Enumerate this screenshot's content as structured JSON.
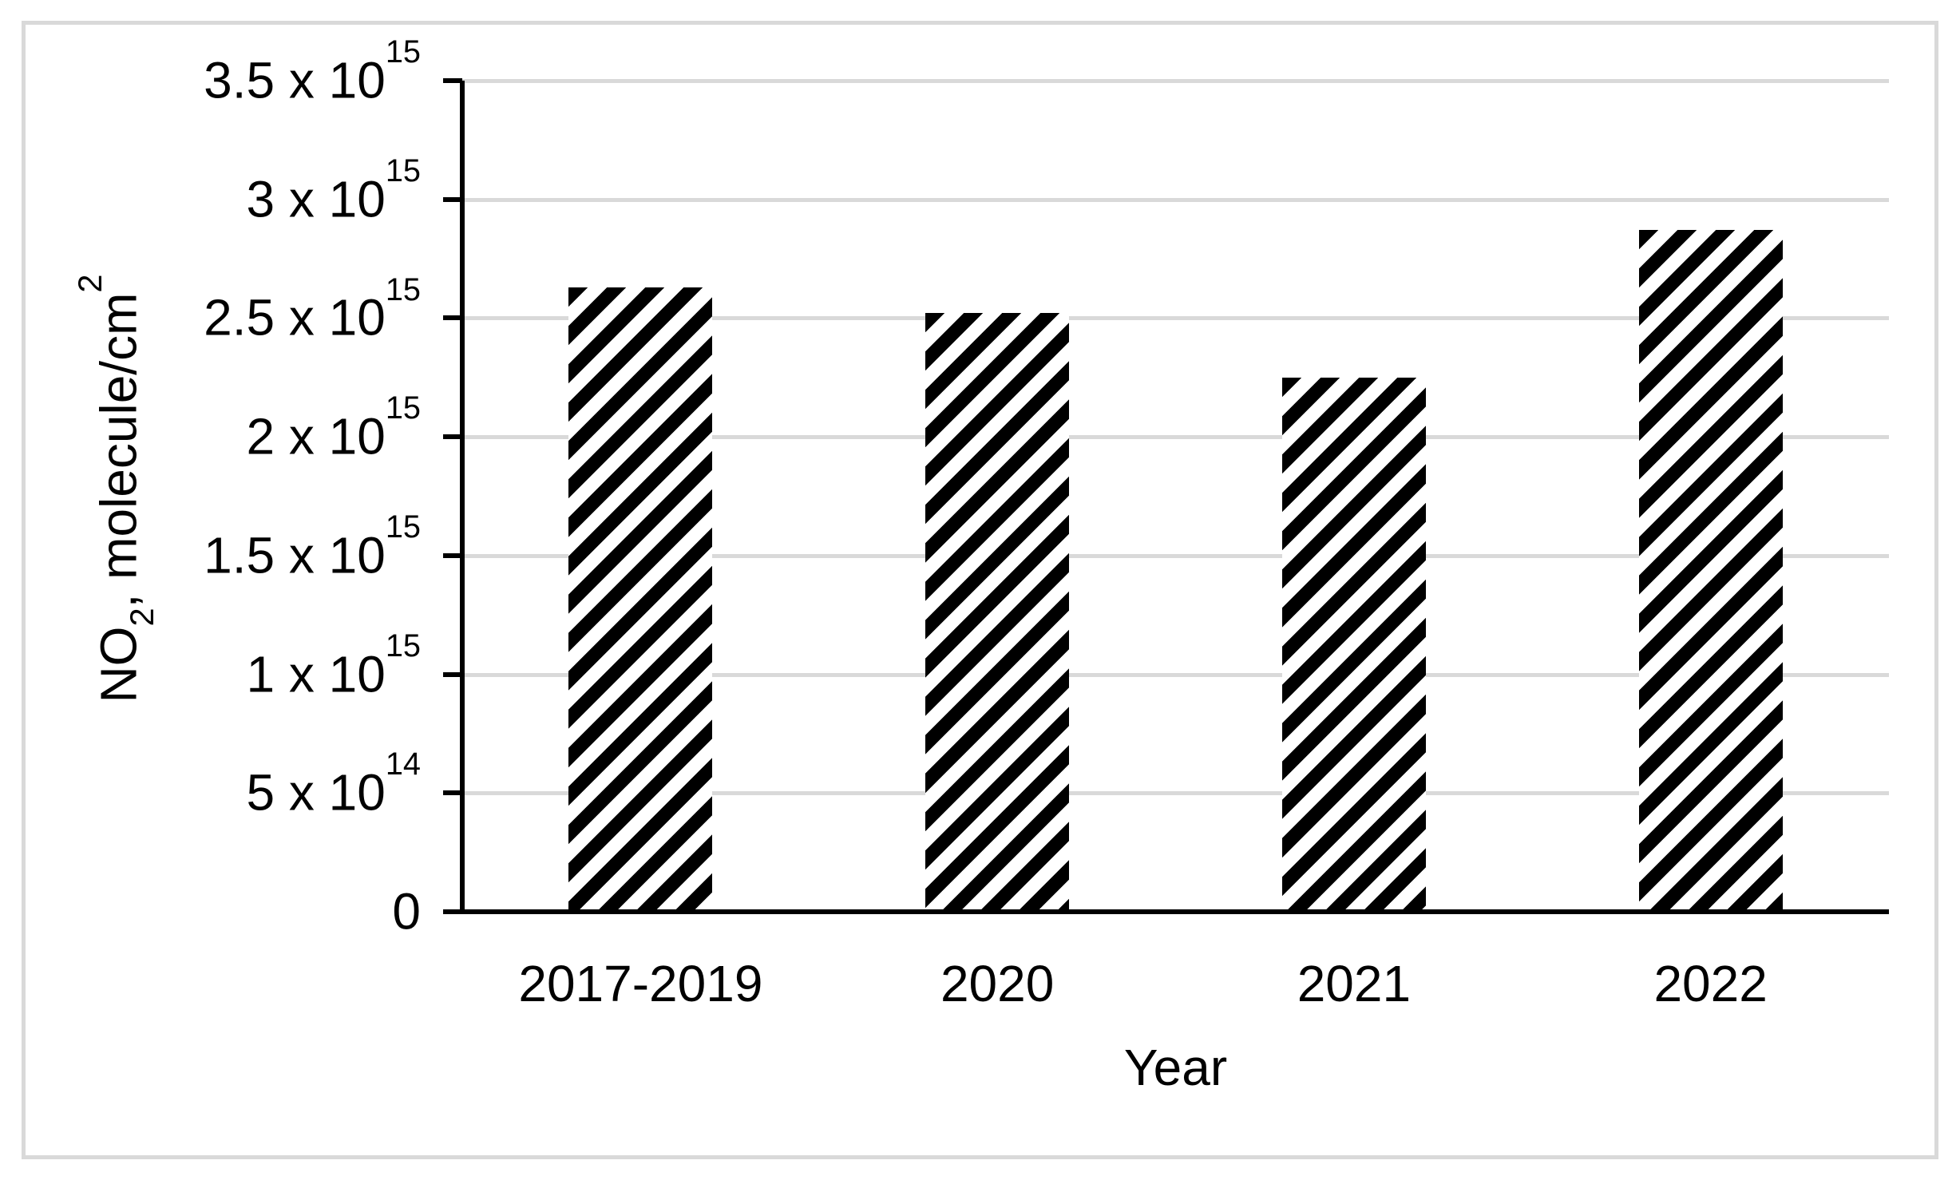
{
  "chart_data": {
    "type": "bar",
    "title": "",
    "xlabel": "Year",
    "ylabel": "NO2, molecule/cm2",
    "ylabel_parts": [
      {
        "kind": "text",
        "text": "NO"
      },
      {
        "kind": "sub",
        "text": "2"
      },
      {
        "kind": "text",
        "text": ", molecule/cm"
      },
      {
        "kind": "sup",
        "text": "2"
      }
    ],
    "categories": [
      "2017-2019",
      "2020",
      "2021",
      "2022"
    ],
    "values": [
      2630000000000000.0,
      2520000000000000.0,
      2250000000000000.0,
      2870000000000000.0
    ],
    "ylim": [
      0,
      3500000000000000.0
    ],
    "ytick_step": 500000000000000.0,
    "yticks": [
      {
        "value": 0,
        "base": "0",
        "exp": ""
      },
      {
        "value": 500000000000000.0,
        "base": "5 x 10",
        "exp": "14"
      },
      {
        "value": 1000000000000000.0,
        "base": "1 x 10",
        "exp": "15"
      },
      {
        "value": 1500000000000000.0,
        "base": "1.5 x 10",
        "exp": "15"
      },
      {
        "value": 2000000000000000.0,
        "base": "2 x 10",
        "exp": "15"
      },
      {
        "value": 2500000000000000.0,
        "base": "2.5 x 10",
        "exp": "15"
      },
      {
        "value": 3000000000000000.0,
        "base": "3 x 10",
        "exp": "15"
      },
      {
        "value": 3500000000000000.0,
        "base": "3.5 x 10",
        "exp": "15"
      }
    ],
    "grid": true,
    "legend": false,
    "bar_fill_style": "diagonal-hatch",
    "colors": {
      "bar_stroke": "#000000",
      "bar_background": "#ffffff",
      "gridline": "#d9d9d9",
      "axis": "#000000",
      "text": "#000000",
      "frame_border": "#d9d9d9",
      "background": "#ffffff"
    }
  }
}
